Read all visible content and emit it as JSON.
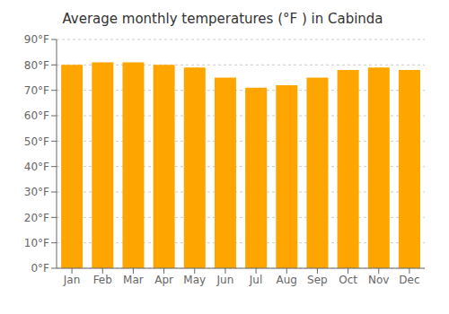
{
  "chart_data": {
    "type": "bar",
    "title": "Average monthly temperatures (°F ) in Cabinda",
    "categories": [
      "Jan",
      "Feb",
      "Mar",
      "Apr",
      "May",
      "Jun",
      "Jul",
      "Aug",
      "Sep",
      "Oct",
      "Nov",
      "Dec"
    ],
    "values": [
      80,
      81,
      81,
      80,
      79,
      75,
      71,
      72,
      75,
      78,
      79,
      78
    ],
    "color": "#FFA500",
    "ylim": [
      0,
      90
    ],
    "yticks": [
      {
        "value": 0,
        "label": "0°F"
      },
      {
        "value": 10,
        "label": "10°F"
      },
      {
        "value": 20,
        "label": "20°F"
      },
      {
        "value": 30,
        "label": "30°F"
      },
      {
        "value": 40,
        "label": "40°F"
      },
      {
        "value": 50,
        "label": "50°F"
      },
      {
        "value": 60,
        "label": "60°F"
      },
      {
        "value": 70,
        "label": "70°F"
      },
      {
        "value": 80,
        "label": "80°F"
      },
      {
        "value": 90,
        "label": "90°F"
      }
    ],
    "grid": true
  }
}
